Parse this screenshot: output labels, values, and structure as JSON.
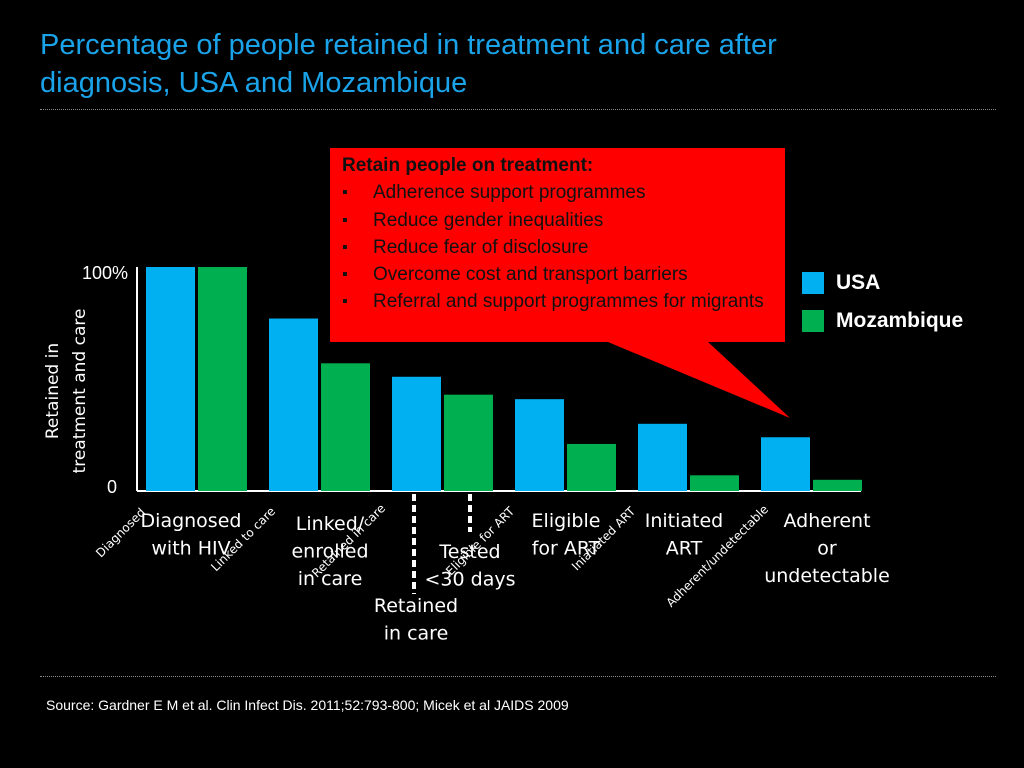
{
  "title": "Percentage of people retained in treatment and care after diagnosis, USA and Mozambique",
  "colors": {
    "usa": "#00b0f0",
    "mozambique": "#00b050",
    "callout": "#ff0000",
    "title": "#1aa3e8"
  },
  "callout": {
    "heading": "Retain people on treatment:",
    "items": [
      "Adherence support programmes",
      "Reduce gender inequalities",
      "Reduce fear of disclosure",
      "Overcome cost and transport barriers",
      "Referral and support programmes for migrants"
    ]
  },
  "legend": {
    "usa": "USA",
    "mozambique": "Mozambique"
  },
  "source": "Source: Gardner E M et al. Clin Infect Dis. 2011;52:793-800; Micek et al JAIDS 2009",
  "chart_data": {
    "type": "bar",
    "title": "Percentage of people retained in treatment and care after diagnosis, USA and Mozambique",
    "ylabel_lines": [
      "Retained in",
      "treatment and care"
    ],
    "ylim": [
      0,
      100
    ],
    "ytick_labels": {
      "top": "100%",
      "bottom": "0"
    },
    "categories": [
      [
        "Diagnosed",
        "with HIV"
      ],
      [
        "Linked/",
        "enrolled",
        "in care"
      ],
      [
        "Retained",
        "in care"
      ],
      [
        "Eligible",
        "for ART"
      ],
      [
        "Initiated",
        "ART"
      ],
      [
        "Adherent",
        "or",
        "undetectable"
      ]
    ],
    "extra_category": [
      "Tested",
      "<30 days"
    ],
    "series": [
      {
        "name": "USA",
        "values": [
          100,
          77,
          51,
          41,
          30,
          24
        ]
      },
      {
        "name": "Mozambique",
        "values": [
          100,
          57,
          43,
          21,
          7,
          5
        ]
      }
    ],
    "annotations": [
      "Diagnosed",
      "Linked to care",
      "Retained in care",
      "Eligible for ART",
      "Iniatiated ART",
      "Adherent/undetectable"
    ]
  }
}
